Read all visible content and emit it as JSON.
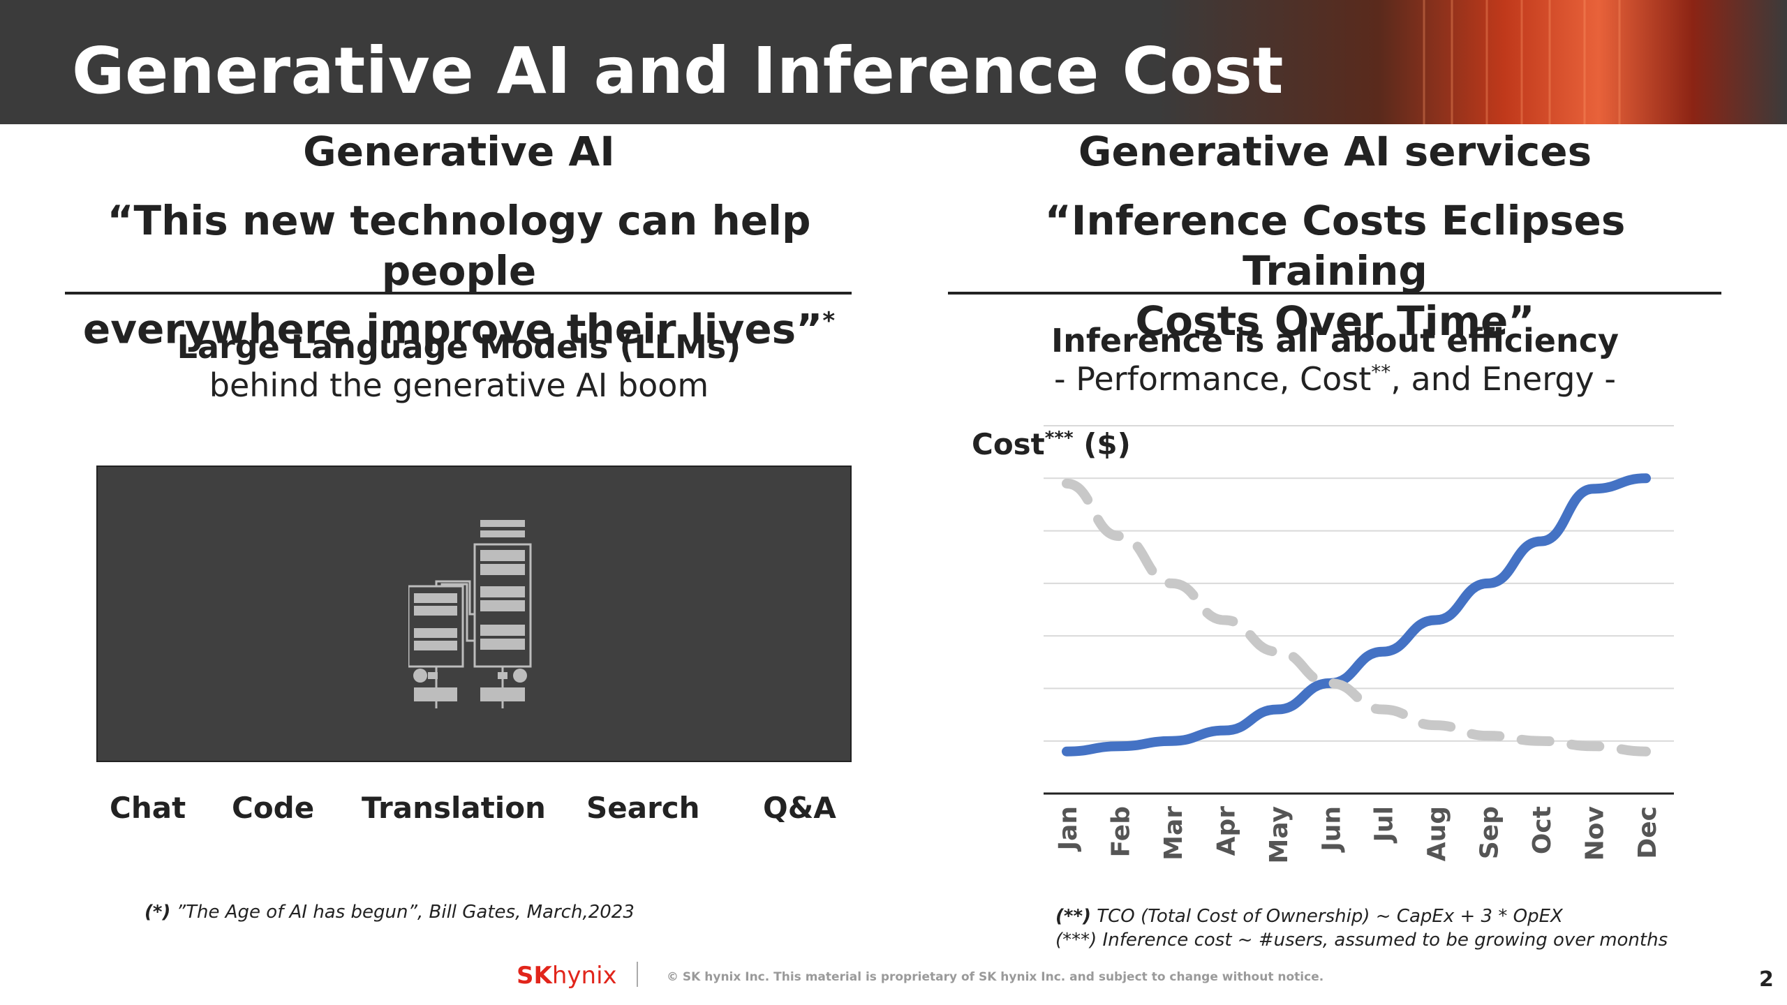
{
  "slide": {
    "title": "Generative AI and Inference Cost",
    "page_number": "2"
  },
  "left": {
    "heading": "Generative AI",
    "quote_line1": "“This new technology can help people",
    "quote_line2": "everywhere improve their lives”",
    "quote_mark": "*",
    "sub_bold": "Large Language Models (LLMs)",
    "sub_normal": "behind the generative AI boom",
    "llm_icon": "transformer-architecture-icon",
    "applications": [
      "Chat",
      "Code",
      "Translation",
      "Search",
      "Q&A"
    ],
    "footnote_mark": "(*)",
    "footnote_text": " ”The Age of AI has begun”, Bill Gates, March,2023"
  },
  "right": {
    "heading": "Generative AI services",
    "quote_line1": "“Inference Costs Eclipses Training",
    "quote_line2": "Costs Over Time”",
    "sub_bold": "Inference is all about efficiency",
    "sub_pre": "- Performance, Cost",
    "sub_mark": "**",
    "sub_post": ", and Energy -",
    "footnote1_mark": "(**)",
    "footnote1_text": " TCO (Total Cost of Ownership) ~ CapEx + 3 * OpEX",
    "footnote2": "(***) Inference cost ~ #users, assumed to be growing over months"
  },
  "footer": {
    "logo_sk": "SK",
    "logo_hynix": "hynix",
    "legal": "© SK hynix Inc. This material is proprietary of SK hynix Inc. and subject to change without notice."
  },
  "colors": {
    "banner": "#3b3b3b",
    "rising_line": "#4472c4",
    "falling_line": "#c8c8c8",
    "logo_red": "#e1251b"
  },
  "chart_data": {
    "type": "line",
    "ylabel": "Cost",
    "ylabel_mark": "***",
    "ylabel_unit": "($)",
    "xlabel": "",
    "categories": [
      "Jan",
      "Feb",
      "Mar",
      "Apr",
      "May",
      "Jun",
      "Jul",
      "Aug",
      "Sep",
      "Oct",
      "Nov",
      "Dec"
    ],
    "ylim": [
      0,
      7
    ],
    "grid": true,
    "legend": "none",
    "y_tick_labels": "none",
    "series": [
      {
        "style": "solid",
        "color": "#4472c4",
        "values": [
          0.8,
          0.9,
          1.0,
          1.2,
          1.6,
          2.1,
          2.7,
          3.3,
          4.0,
          4.8,
          5.8,
          6.0
        ]
      },
      {
        "style": "dashed",
        "color": "#c8c8c8",
        "values": [
          5.9,
          4.9,
          4.0,
          3.3,
          2.7,
          2.1,
          1.6,
          1.3,
          1.1,
          1.0,
          0.9,
          0.8
        ]
      }
    ]
  }
}
